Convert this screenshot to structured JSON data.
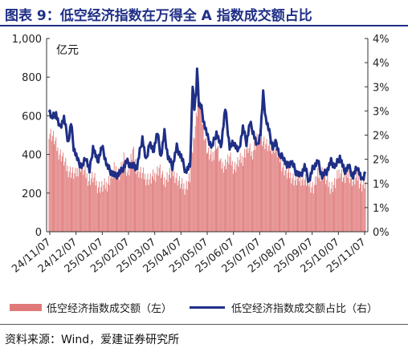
{
  "title": "图表 9：低空经济指数在万得全 A 指数成交额占比",
  "source": "资料来源：Wind，爱建证券研究所",
  "chart_data": {
    "type": "bar+line",
    "left_unit_label": "亿元",
    "left_axis": {
      "ylim": [
        0,
        1000
      ],
      "ticks": [
        "0",
        "200",
        "400",
        "600",
        "800",
        "1,000"
      ]
    },
    "right_axis": {
      "ylim": [
        0,
        4
      ],
      "ticks": [
        "0%",
        "1%",
        "1%",
        "2%",
        "2%",
        "3%",
        "3%",
        "4%",
        "4%"
      ]
    },
    "x_tick_labels": [
      "24/11/07",
      "24/12/07",
      "25/01/07",
      "25/02/07",
      "25/03/07",
      "25/04/07",
      "25/05/07",
      "25/06/07",
      "25/07/07",
      "25/08/07",
      "25/09/07",
      "25/10/07",
      "25/11/07"
    ],
    "series": [
      {
        "name": "低空经济指数成交额（左）",
        "type": "bar",
        "color": "#e07a7a",
        "anchors": [
          [
            0,
            520
          ],
          [
            5,
            490
          ],
          [
            10,
            420
          ],
          [
            15,
            390
          ],
          [
            20,
            330
          ],
          [
            25,
            310
          ],
          [
            30,
            290
          ],
          [
            35,
            350
          ],
          [
            40,
            310
          ],
          [
            45,
            270
          ],
          [
            50,
            280
          ],
          [
            55,
            240
          ],
          [
            60,
            230
          ],
          [
            65,
            240
          ],
          [
            70,
            280
          ],
          [
            75,
            330
          ],
          [
            80,
            300
          ],
          [
            85,
            370
          ],
          [
            90,
            300
          ],
          [
            95,
            420
          ],
          [
            100,
            320
          ],
          [
            105,
            300
          ],
          [
            110,
            280
          ],
          [
            115,
            270
          ],
          [
            120,
            290
          ],
          [
            125,
            330
          ],
          [
            130,
            260
          ],
          [
            135,
            290
          ],
          [
            140,
            310
          ],
          [
            145,
            280
          ],
          [
            150,
            240
          ],
          [
            155,
            230
          ],
          [
            160,
            280
          ],
          [
            165,
            520
          ],
          [
            170,
            700
          ],
          [
            175,
            540
          ],
          [
            180,
            410
          ],
          [
            185,
            380
          ],
          [
            190,
            460
          ],
          [
            195,
            340
          ],
          [
            200,
            350
          ],
          [
            205,
            380
          ],
          [
            210,
            330
          ],
          [
            215,
            360
          ],
          [
            220,
            380
          ],
          [
            225,
            440
          ],
          [
            230,
            400
          ],
          [
            235,
            470
          ],
          [
            240,
            500
          ],
          [
            245,
            460
          ],
          [
            250,
            430
          ],
          [
            255,
            450
          ],
          [
            260,
            400
          ],
          [
            265,
            340
          ],
          [
            270,
            300
          ],
          [
            275,
            290
          ],
          [
            280,
            260
          ],
          [
            285,
            280
          ],
          [
            290,
            270
          ],
          [
            295,
            250
          ],
          [
            300,
            230
          ],
          [
            305,
            290
          ],
          [
            310,
            310
          ],
          [
            315,
            260
          ],
          [
            320,
            230
          ],
          [
            325,
            250
          ],
          [
            330,
            320
          ],
          [
            335,
            270
          ],
          [
            340,
            300
          ],
          [
            345,
            260
          ],
          [
            350,
            280
          ],
          [
            355,
            240
          ],
          [
            359,
            250
          ]
        ]
      },
      {
        "name": "低空经济指数成交额占比（右）",
        "type": "line",
        "color": "#1f2f86",
        "anchors": [
          [
            0,
            2.55
          ],
          [
            3,
            2.35
          ],
          [
            8,
            2.45
          ],
          [
            12,
            2.15
          ],
          [
            17,
            2.35
          ],
          [
            22,
            1.85
          ],
          [
            25,
            2.25
          ],
          [
            28,
            1.75
          ],
          [
            33,
            1.45
          ],
          [
            38,
            1.35
          ],
          [
            42,
            1.55
          ],
          [
            46,
            1.25
          ],
          [
            50,
            1.75
          ],
          [
            55,
            1.45
          ],
          [
            60,
            1.75
          ],
          [
            62,
            1.65
          ],
          [
            66,
            1.35
          ],
          [
            70,
            1.25
          ],
          [
            75,
            1.15
          ],
          [
            82,
            1.25
          ],
          [
            88,
            1.45
          ],
          [
            95,
            1.35
          ],
          [
            100,
            1.35
          ],
          [
            102,
            1.55
          ],
          [
            106,
            1.95
          ],
          [
            110,
            1.45
          ],
          [
            114,
            1.85
          ],
          [
            118,
            1.65
          ],
          [
            123,
            2.05
          ],
          [
            127,
            1.55
          ],
          [
            131,
            2.05
          ],
          [
            135,
            1.55
          ],
          [
            140,
            1.35
          ],
          [
            145,
            1.75
          ],
          [
            150,
            1.55
          ],
          [
            155,
            1.25
          ],
          [
            160,
            1.35
          ],
          [
            163,
            3.05
          ],
          [
            165,
            2.55
          ],
          [
            167,
            2.85
          ],
          [
            168,
            3.45
          ],
          [
            170,
            2.65
          ],
          [
            173,
            2.55
          ],
          [
            176,
            2.25
          ],
          [
            180,
            1.95
          ],
          [
            185,
            1.75
          ],
          [
            190,
            2.05
          ],
          [
            195,
            1.75
          ],
          [
            200,
            2.55
          ],
          [
            205,
            1.75
          ],
          [
            210,
            1.85
          ],
          [
            215,
            1.65
          ],
          [
            220,
            2.15
          ],
          [
            224,
            1.85
          ],
          [
            228,
            2.25
          ],
          [
            232,
            2.05
          ],
          [
            236,
            1.75
          ],
          [
            240,
            2.05
          ],
          [
            243,
            2.85
          ],
          [
            246,
            2.35
          ],
          [
            250,
            2.05
          ],
          [
            254,
            1.75
          ],
          [
            258,
            1.85
          ],
          [
            262,
            1.55
          ],
          [
            266,
            1.55
          ],
          [
            270,
            1.35
          ],
          [
            275,
            1.45
          ],
          [
            280,
            1.25
          ],
          [
            285,
            1.15
          ],
          [
            290,
            1.35
          ],
          [
            295,
            1.05
          ],
          [
            300,
            1.35
          ],
          [
            305,
            1.45
          ],
          [
            310,
            1.15
          ],
          [
            315,
            1.25
          ],
          [
            320,
            1.45
          ],
          [
            325,
            1.35
          ],
          [
            330,
            1.55
          ],
          [
            335,
            1.25
          ],
          [
            340,
            1.35
          ],
          [
            345,
            1.15
          ],
          [
            350,
            1.35
          ],
          [
            355,
            1.05
          ],
          [
            359,
            1.25
          ]
        ]
      }
    ]
  }
}
